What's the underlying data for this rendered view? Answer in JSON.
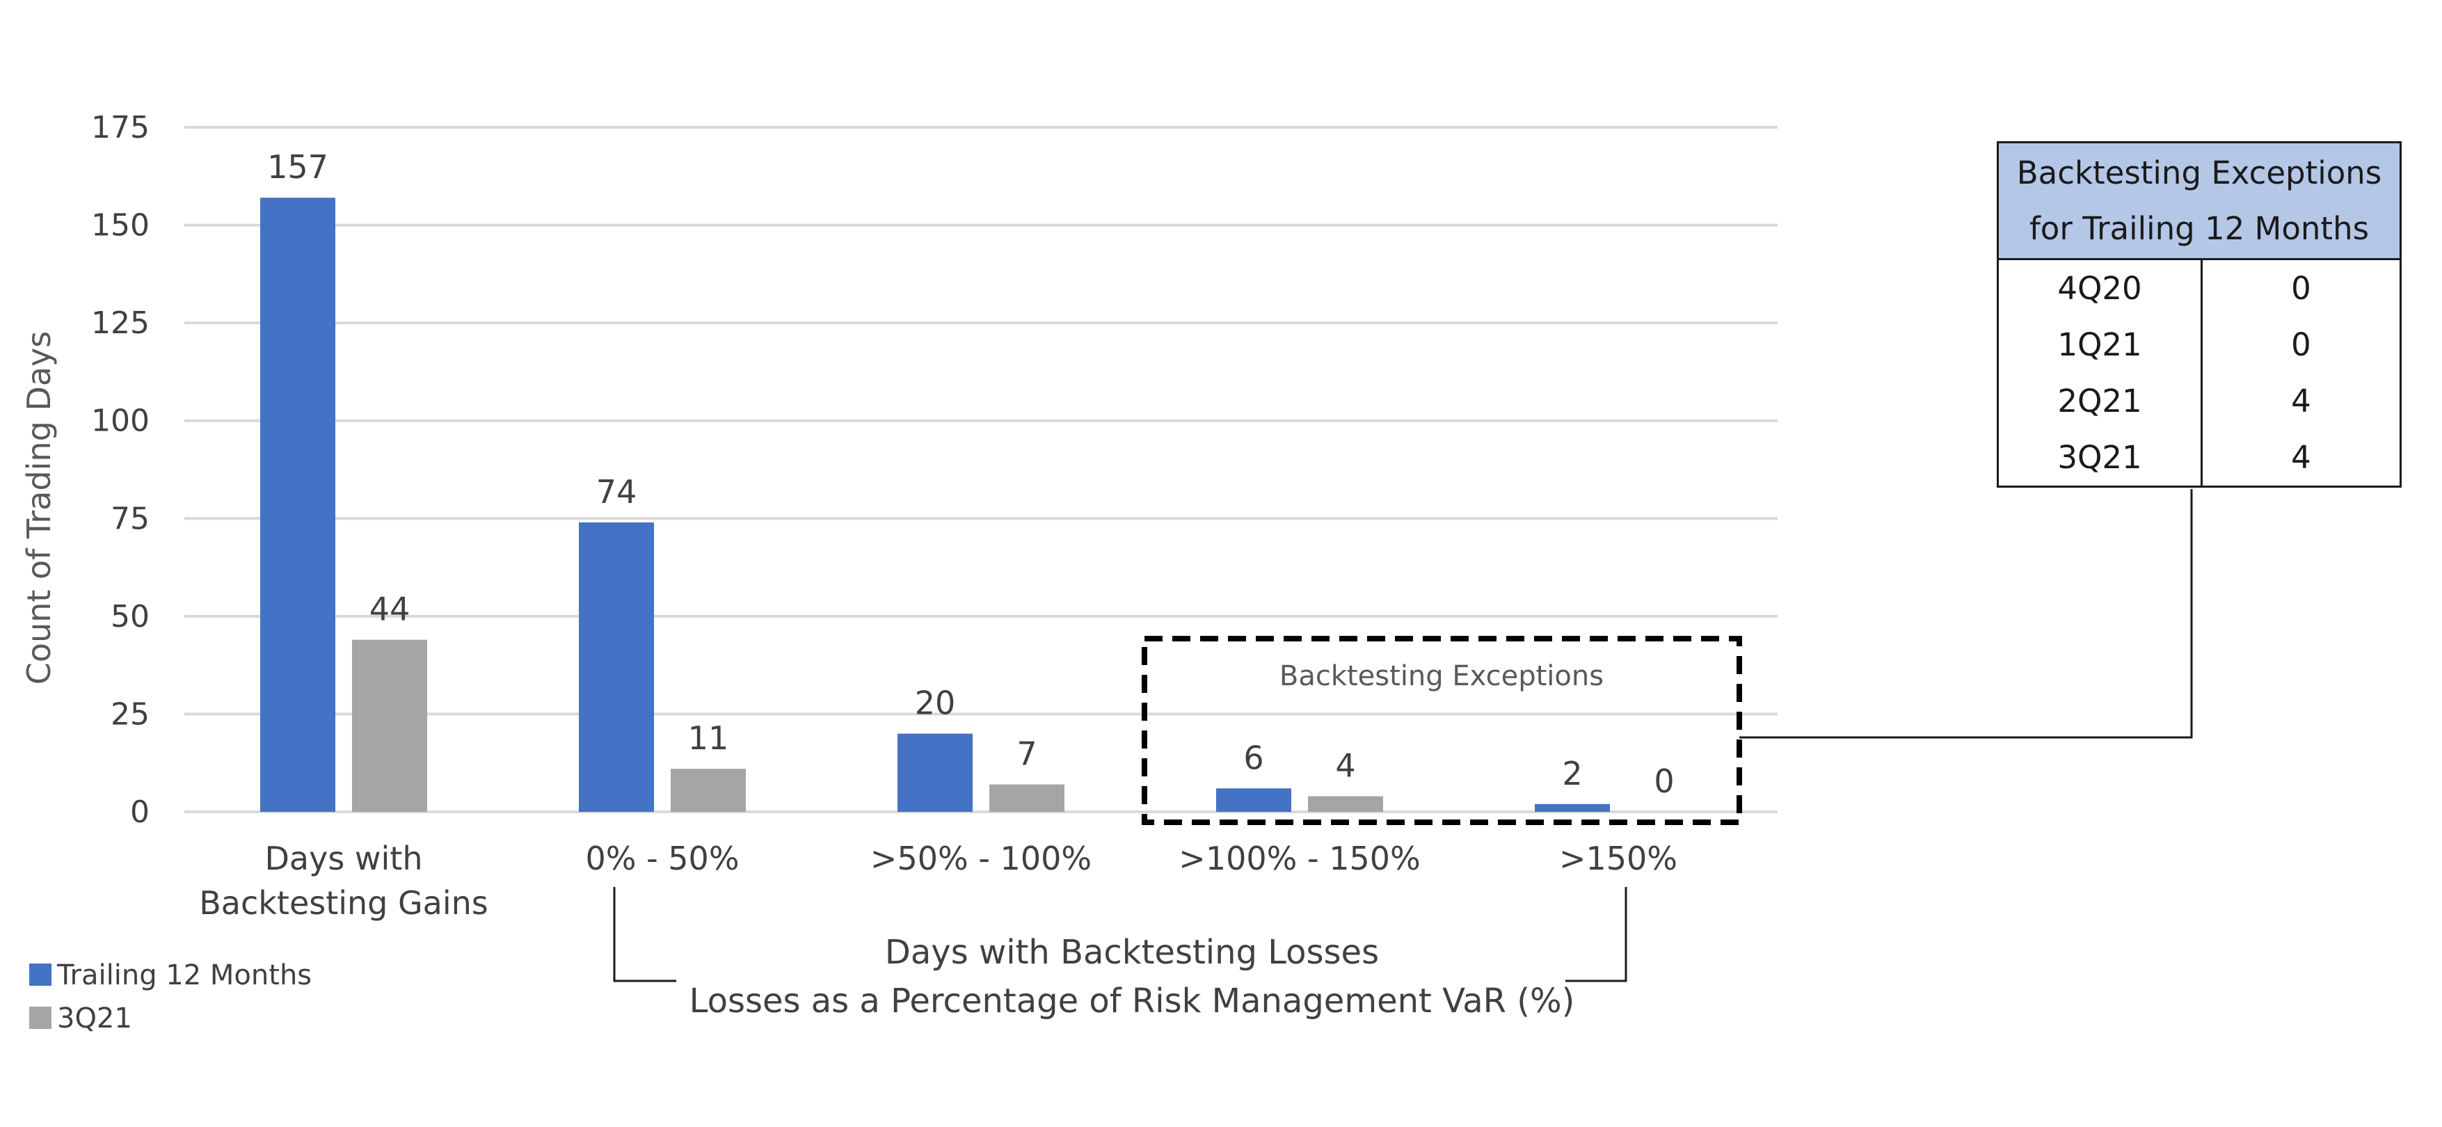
{
  "chart_data": {
    "type": "bar",
    "ylabel": "Count of Trading Days",
    "ylim": [
      0,
      175
    ],
    "yticks": [
      0,
      25,
      50,
      75,
      100,
      125,
      150,
      175
    ],
    "grid": true,
    "categories": [
      "Days with\nBacktesting Gains",
      "0% - 50%",
      ">50% - 100%",
      ">100% - 150%",
      ">150%"
    ],
    "series": [
      {
        "name": "Trailing 12 Months",
        "color": "#4472c4",
        "values": [
          157,
          74,
          20,
          6,
          2
        ]
      },
      {
        "name": "3Q21",
        "color": "#a5a5a5",
        "values": [
          44,
          11,
          7,
          4,
          0
        ]
      }
    ],
    "legend_position": "bottom-left",
    "losses_group_label": [
      "Days with Backtesting Losses",
      "Losses as a Percentage of Risk Management VaR (%)"
    ],
    "exceptions_box_label": "Backtesting Exceptions"
  },
  "table": {
    "header": "Backtesting Exceptions for Trailing 12 Months",
    "rows": [
      {
        "quarter": "4Q20",
        "count": "0"
      },
      {
        "quarter": "1Q21",
        "count": "0"
      },
      {
        "quarter": "2Q21",
        "count": "4"
      },
      {
        "quarter": "3Q21",
        "count": "4"
      }
    ]
  }
}
